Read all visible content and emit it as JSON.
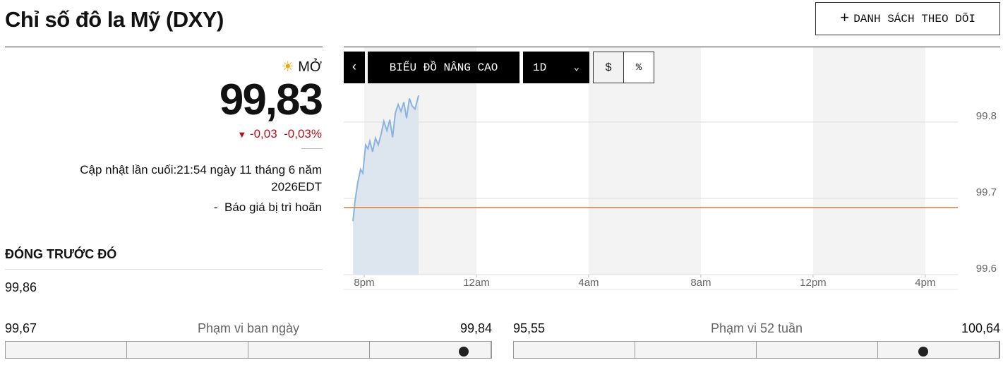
{
  "header": {
    "title": "Chỉ số đô la Mỹ (DXY)",
    "watchlist_button": "DANH SÁCH THEO DÕI"
  },
  "quote": {
    "status": "MỞ",
    "price": "99,83",
    "change": "-0,03",
    "change_pct": "-0,03%",
    "updated": "Cập nhật lần cuối:21:54 ngày 11 tháng 6 năm 2026EDT",
    "delay_note": "-  Báo giá bị trì hoãn"
  },
  "previous_close": {
    "label": "ĐÓNG TRƯỚC ĐÓ",
    "value": "99,86"
  },
  "day_range": {
    "low": "99,67",
    "label": "Phạm vi ban ngày",
    "high": "99,84"
  },
  "week52_range": {
    "low": "95,55",
    "label": "Phạm vi 52 tuần",
    "high": "100,64"
  },
  "toolbar": {
    "advanced": "BIỂU ĐỒ NÂNG CAO",
    "interval": "1D",
    "dollar": "$",
    "percent": "%"
  },
  "chart_data": {
    "type": "line",
    "x": [
      19.6,
      19.67,
      19.77,
      19.87,
      19.95,
      20.05,
      20.13,
      20.2,
      20.3,
      20.4,
      20.5,
      20.6,
      20.7,
      20.81,
      20.91,
      21.01,
      21.11,
      21.21,
      21.31,
      21.41,
      21.51,
      21.61,
      21.71,
      21.81,
      21.94
    ],
    "series": [
      {
        "color": "#8cb3de",
        "values": [
          99.67,
          99.696,
          99.721,
          99.738,
          99.733,
          99.77,
          99.765,
          99.775,
          99.761,
          99.779,
          99.77,
          99.784,
          99.801,
          99.789,
          99.803,
          99.78,
          99.812,
          99.823,
          99.814,
          99.826,
          99.805,
          99.831,
          99.821,
          99.817,
          99.835
        ]
      }
    ],
    "reference_line": {
      "value": 99.688,
      "color": "#e07b39"
    },
    "xlim": [
      19.27,
      41.16
    ],
    "xticks": [
      {
        "value": 20,
        "label": "8pm"
      },
      {
        "value": 24,
        "label": "12am"
      },
      {
        "value": 28,
        "label": "4am"
      },
      {
        "value": 32,
        "label": "8am"
      },
      {
        "value": 36,
        "label": "12pm"
      },
      {
        "value": 40,
        "label": "4pm"
      }
    ],
    "ylim": [
      99.6,
      99.898
    ],
    "yticks": [
      99.6,
      99.7,
      99.8
    ],
    "grid": true
  }
}
